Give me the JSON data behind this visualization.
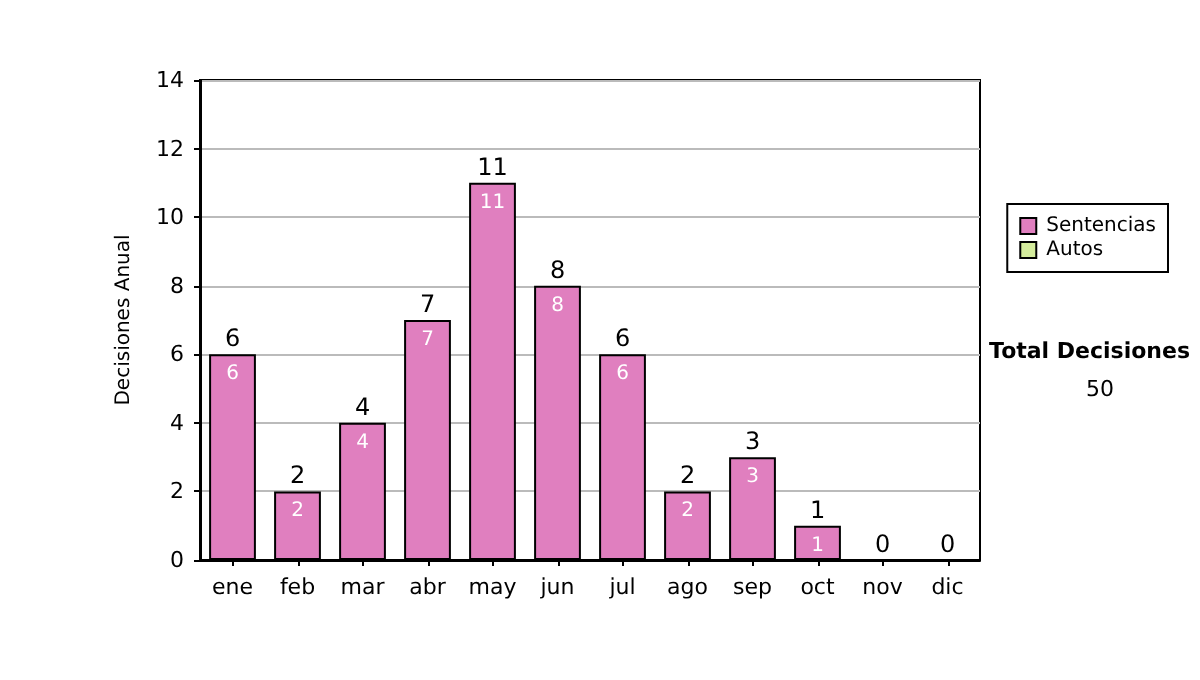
{
  "chart_data": {
    "type": "bar",
    "ylabel": "Decisiones Anual",
    "categories": [
      "ene",
      "feb",
      "mar",
      "abr",
      "may",
      "jun",
      "jul",
      "ago",
      "sep",
      "oct",
      "nov",
      "dic"
    ],
    "series": [
      {
        "name": "Sentencias",
        "color": "#e07fbf",
        "values": [
          6,
          2,
          4,
          7,
          11,
          8,
          6,
          2,
          3,
          1,
          0,
          0
        ],
        "value_labels": [
          "6",
          "2",
          "4",
          "7",
          "11",
          "8",
          "6",
          "2",
          "3",
          "1",
          null,
          null
        ]
      },
      {
        "name": "Autos",
        "color": "#d4ec9c",
        "values": [
          0,
          0,
          0,
          0,
          0,
          0,
          0,
          0,
          0,
          0,
          0,
          0
        ]
      }
    ],
    "stacked": true,
    "totals": [
      "6",
      "2",
      "4",
      "7",
      "11",
      "8",
      "6",
      "2",
      "3",
      "1",
      "0",
      "0"
    ],
    "ylim": [
      0,
      14
    ],
    "yticks": [
      0,
      2,
      4,
      6,
      8,
      10,
      12,
      14
    ],
    "grid": "y",
    "legend": "right",
    "annotations": [
      "Total Decisiones",
      "50"
    ]
  }
}
